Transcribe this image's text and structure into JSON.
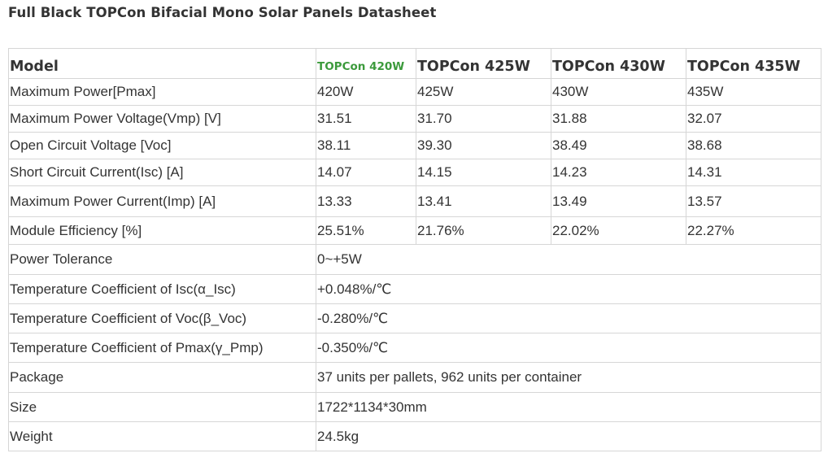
{
  "title": "Full Black TOPCon Bifacial Mono Solar Panels Datasheet",
  "table": {
    "header": [
      "Model",
      "TOPCon 420W",
      "TOPCon 425W",
      "TOPCon 430W",
      "TOPCon 435W"
    ],
    "model_rows": [
      {
        "label": "Maximum Power[Pmax]",
        "values": [
          "420W",
          "425W",
          "430W",
          "435W"
        ]
      },
      {
        "label": "Maximum Power Voltage(Vmp) [V]",
        "values": [
          "31.51",
          "31.70",
          "31.88",
          "32.07"
        ]
      },
      {
        "label": "Open Circuit Voltage [Voc]",
        "values": [
          "38.11",
          "39.30",
          "38.49",
          "38.68"
        ]
      },
      {
        "label": "Short Circuit Current(Isc) [A]",
        "values": [
          "14.07",
          "14.15",
          "14.23",
          "14.31"
        ]
      },
      {
        "label": "Maximum Power Current(Imp) [A]",
        "values": [
          "13.33",
          "13.41",
          "13.49",
          "13.57"
        ]
      },
      {
        "label": "Module Efficiency [%]",
        "values": [
          "25.51%",
          "21.76%",
          "22.02%",
          "22.27%"
        ]
      }
    ],
    "common_rows": [
      {
        "label": "Power Tolerance",
        "value": "0~+5W"
      },
      {
        "label": "Temperature Coefficient of Isc(α_Isc)",
        "value": "+0.048%/℃"
      },
      {
        "label": "Temperature Coefficient of Voc(β_Voc)",
        "value": "-0.280%/℃"
      },
      {
        "label": "Temperature Coefficient of Pmax(γ_Pmp)",
        "value": "-0.350%/℃"
      },
      {
        "label": "Package",
        "value": "37 units per pallets, 962 units per container"
      },
      {
        "label": "Size",
        "value": "1722*1134*30mm"
      },
      {
        "label": "Weight",
        "value": "24.5kg"
      }
    ]
  },
  "colors": {
    "text": "#333333",
    "highlight": "#3c9a3c",
    "border": "#d6d6d6"
  }
}
